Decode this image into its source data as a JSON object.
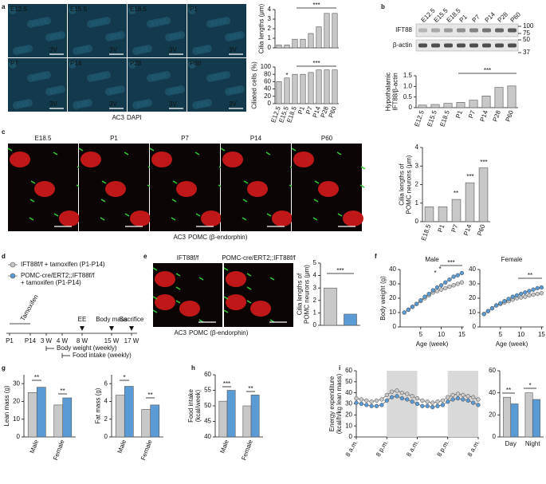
{
  "panels": [
    "a",
    "b",
    "c",
    "d",
    "e",
    "f",
    "g",
    "h",
    "i"
  ],
  "micrographs": {
    "a": {
      "tiles": [
        "E12.5",
        "E15.5",
        "E18.5",
        "P1",
        "P7",
        "P14",
        "P28",
        "P60"
      ],
      "region": "3V",
      "stain": [
        "AC3",
        "DAPI"
      ]
    },
    "c": {
      "tiles": [
        "E18.5",
        "P1",
        "P7",
        "P14",
        "P60"
      ],
      "stain": [
        "AC3",
        "POMC (β-endorphin)"
      ]
    },
    "e": {
      "tiles": [
        "IFT88f/f",
        "POMC-cre/ERT2;;IFT88f/f"
      ],
      "stain": [
        "AC3",
        "POMC (β-endorphin)"
      ]
    }
  },
  "blot": {
    "lanes": [
      "E12.5",
      "E15.5",
      "E18.5",
      "P1",
      "P7",
      "P14",
      "P28",
      "P60"
    ],
    "bands": [
      "IFT88",
      "β-actin"
    ],
    "markers": [
      100,
      75,
      50,
      37
    ]
  },
  "timeline": {
    "legend": [
      [
        "IFT88f/f + tamoxifen (P1-P14)"
      ],
      [
        "POMC-cre/ERT2;;IFT88f/f",
        "+ tamoxifen (P1-P14)"
      ]
    ],
    "ticks": [
      "P1",
      "P14",
      "3 W",
      "4 W",
      "8 W",
      "15 W",
      "17 W"
    ],
    "events": [
      "Tamoxifen",
      "EE",
      "Body mass",
      "Sacrifice"
    ],
    "periods": [
      "Body weight (weekly)",
      "Food intake (weekly)"
    ]
  },
  "chart_data": [
    {
      "type": "bar",
      "ylabel": [
        "Cilia lengths (μm)"
      ],
      "values": [
        0.3,
        0.3,
        0.9,
        0.9,
        1.5,
        2.2,
        3.6,
        3.6
      ],
      "color": "#c8c8c8",
      "ylim": [
        0,
        4
      ],
      "yticks": [
        0,
        1,
        2,
        3,
        4
      ],
      "annotations": [
        "***"
      ]
    },
    {
      "type": "bar",
      "ylabel": [
        "Ciliated cells (%)"
      ],
      "categories": [
        "E12.5",
        "E15.5",
        "E18.5",
        "P1",
        "P7",
        "P14",
        "P28",
        "P60"
      ],
      "values": [
        60,
        70,
        80,
        80,
        85,
        92,
        92,
        92
      ],
      "color": "#c8c8c8",
      "ylim": [
        0,
        100
      ],
      "yticks": [
        0,
        20,
        40,
        60,
        80,
        100
      ],
      "annotations": [
        "*",
        "***"
      ]
    },
    {
      "type": "bar",
      "ylabel": [
        "Hypothalamic",
        "IFT88/β-actin"
      ],
      "categories": [
        "E12.5",
        "E15.5",
        "E18.5",
        "P1",
        "P7",
        "P14",
        "P28",
        "P60"
      ],
      "values": [
        0.12,
        0.15,
        0.2,
        0.25,
        0.35,
        0.55,
        0.95,
        1.02
      ],
      "color": "#c8c8c8",
      "ylim": [
        0,
        1.5
      ],
      "yticks": [
        0,
        0.5,
        {
          "value": 1,
          "label": "1.0"
        },
        1.5
      ],
      "annotations": [
        "***"
      ]
    },
    {
      "type": "bar",
      "ylabel": [
        "Cilia lengths of",
        "POMC neurons (μm)"
      ],
      "categories": [
        "E18.5",
        "P1",
        "P7",
        "P14",
        "P60"
      ],
      "values": [
        0.8,
        0.8,
        1.2,
        2.1,
        2.9
      ],
      "color": "#c8c8c8",
      "ylim": [
        0,
        4
      ],
      "yticks": [
        0,
        1,
        2,
        3,
        4
      ],
      "annotations": [
        "**",
        "***",
        "***"
      ]
    },
    {
      "type": "bar",
      "ylabel": [
        "Cilia lengths of",
        "POMC neurons (μm)"
      ],
      "values": [
        3.0,
        0.9
      ],
      "colors": [
        "#c8c8c8",
        "#5b9bd5"
      ],
      "ylim": [
        0,
        5
      ],
      "yticks": [
        0,
        1,
        2,
        3,
        4,
        5
      ],
      "annotations": [
        "***"
      ]
    },
    {
      "type": "line",
      "title": "Male",
      "ylabel": [
        "Body weight (g)"
      ],
      "xlabel": "Age (week)",
      "xlim": [
        0,
        15.5
      ],
      "xticks": [
        5,
        10,
        15
      ],
      "ylim": [
        0,
        40
      ],
      "yticks": [
        0,
        10,
        20,
        30,
        40
      ],
      "x": [
        1,
        2,
        3,
        4,
        5,
        6,
        7,
        8,
        9,
        10,
        11,
        12,
        13,
        14,
        15
      ],
      "series": [
        {
          "color": "#c8c8c8",
          "values": [
            10,
            12,
            14,
            16,
            18,
            20,
            22,
            24,
            25,
            26,
            27,
            28,
            29,
            30,
            31
          ]
        },
        {
          "color": "#5b9bd5",
          "values": [
            10,
            12,
            14,
            16,
            18.5,
            21,
            23,
            25.5,
            27.5,
            29,
            31,
            33,
            35,
            36,
            37.5
          ]
        }
      ],
      "annotations": [
        "*",
        "*",
        "***"
      ]
    },
    {
      "type": "line",
      "title": "Female",
      "xlabel": "Age (week)",
      "xlim": [
        0,
        15.5
      ],
      "xticks": [
        5,
        10,
        15
      ],
      "ylim": [
        0,
        40
      ],
      "yticks": [
        0,
        10,
        20,
        30,
        40
      ],
      "x": [
        1,
        2,
        3,
        4,
        5,
        6,
        7,
        8,
        9,
        10,
        11,
        12,
        13,
        14,
        15
      ],
      "series": [
        {
          "color": "#c8c8c8",
          "values": [
            9,
            11,
            13,
            15,
            16,
            17,
            18,
            19,
            20,
            20.5,
            21,
            22,
            22.5,
            23,
            23.5
          ]
        },
        {
          "color": "#5b9bd5",
          "values": [
            9,
            11,
            13,
            15,
            16.5,
            18,
            19.5,
            21,
            22,
            23,
            24,
            25,
            26,
            27,
            27.5
          ]
        }
      ],
      "annotations": [
        "**"
      ]
    },
    {
      "type": "grouped_bar",
      "ylabel": [
        "Lean mass (g)"
      ],
      "categories": [
        "Male",
        "Female"
      ],
      "ylim": [
        0,
        35
      ],
      "yticks": [
        0,
        10,
        20,
        30
      ],
      "series": [
        {
          "color": "#c8c8c8",
          "values": [
            25,
            18
          ]
        },
        {
          "color": "#5b9bd5",
          "values": [
            28,
            22
          ]
        }
      ],
      "annotations": [
        "**",
        "**"
      ]
    },
    {
      "type": "grouped_bar",
      "ylabel": [
        "Fat mass (g)"
      ],
      "categories": [
        "Male",
        "Female"
      ],
      "ylim": [
        0,
        7
      ],
      "yticks": [
        0,
        2,
        4,
        6
      ],
      "series": [
        {
          "color": "#c8c8c8",
          "values": [
            4.7,
            3.1
          ]
        },
        {
          "color": "#5b9bd5",
          "values": [
            5.7,
            3.6
          ]
        }
      ],
      "annotations": [
        "*",
        "**"
      ]
    },
    {
      "type": "grouped_bar",
      "ylabel": [
        "Food intake",
        "(kcal/week)"
      ],
      "categories": [
        "Male",
        "Female"
      ],
      "ylim": [
        40,
        60
      ],
      "yticks": [
        40,
        45,
        50,
        55,
        60
      ],
      "series": [
        {
          "color": "#c8c8c8",
          "values": [
            51.5,
            50
          ]
        },
        {
          "color": "#5b9bd5",
          "values": [
            55,
            53.5
          ]
        }
      ],
      "annotations": [
        "***",
        "**"
      ]
    },
    {
      "type": "line",
      "ylabel": [
        "Energy expenditure",
        "(kcal/h/kg lean mass)"
      ],
      "xlim": [
        0,
        48
      ],
      "ylim": [
        0,
        60
      ],
      "yticks": [
        0,
        10,
        20,
        30,
        40,
        50,
        60
      ],
      "xticks": [
        {
          "value": 0,
          "label": "8 a.m."
        },
        {
          "value": 12,
          "label": "8 p.m."
        },
        {
          "value": 24,
          "label": "8 a.m."
        },
        {
          "value": 36,
          "label": "8 p.m."
        },
        {
          "value": 48,
          "label": "8 a.m."
        }
      ],
      "shaded": [
        [
          12,
          24
        ],
        [
          36,
          48
        ]
      ],
      "x": [
        0,
        2,
        4,
        6,
        8,
        10,
        12,
        14,
        16,
        18,
        20,
        22,
        24,
        26,
        28,
        30,
        32,
        34,
        36,
        38,
        40,
        42,
        44,
        46,
        48
      ],
      "series": [
        {
          "color": "#c8c8c8",
          "values": [
            35,
            34,
            33,
            32,
            33,
            34,
            38,
            41,
            42,
            40,
            39,
            37,
            35,
            33,
            32,
            31,
            32,
            33,
            36,
            38,
            39,
            38,
            37,
            36,
            34
          ]
        },
        {
          "color": "#5b9bd5",
          "values": [
            31,
            30,
            29,
            28,
            28,
            29,
            33,
            36,
            37,
            35,
            34,
            32,
            30,
            28,
            28,
            27,
            28,
            29,
            32,
            34,
            35,
            34,
            33,
            31,
            29
          ]
        }
      ]
    },
    {
      "type": "grouped_bar",
      "categories": [
        "Day",
        "Night"
      ],
      "ylim": [
        0,
        60
      ],
      "yticks": [
        0,
        20,
        40,
        60
      ],
      "series": [
        {
          "color": "#c8c8c8",
          "values": [
            36,
            40
          ]
        },
        {
          "color": "#5b9bd5",
          "values": [
            30,
            34
          ]
        }
      ],
      "annotations": [
        "**",
        "*"
      ]
    }
  ]
}
